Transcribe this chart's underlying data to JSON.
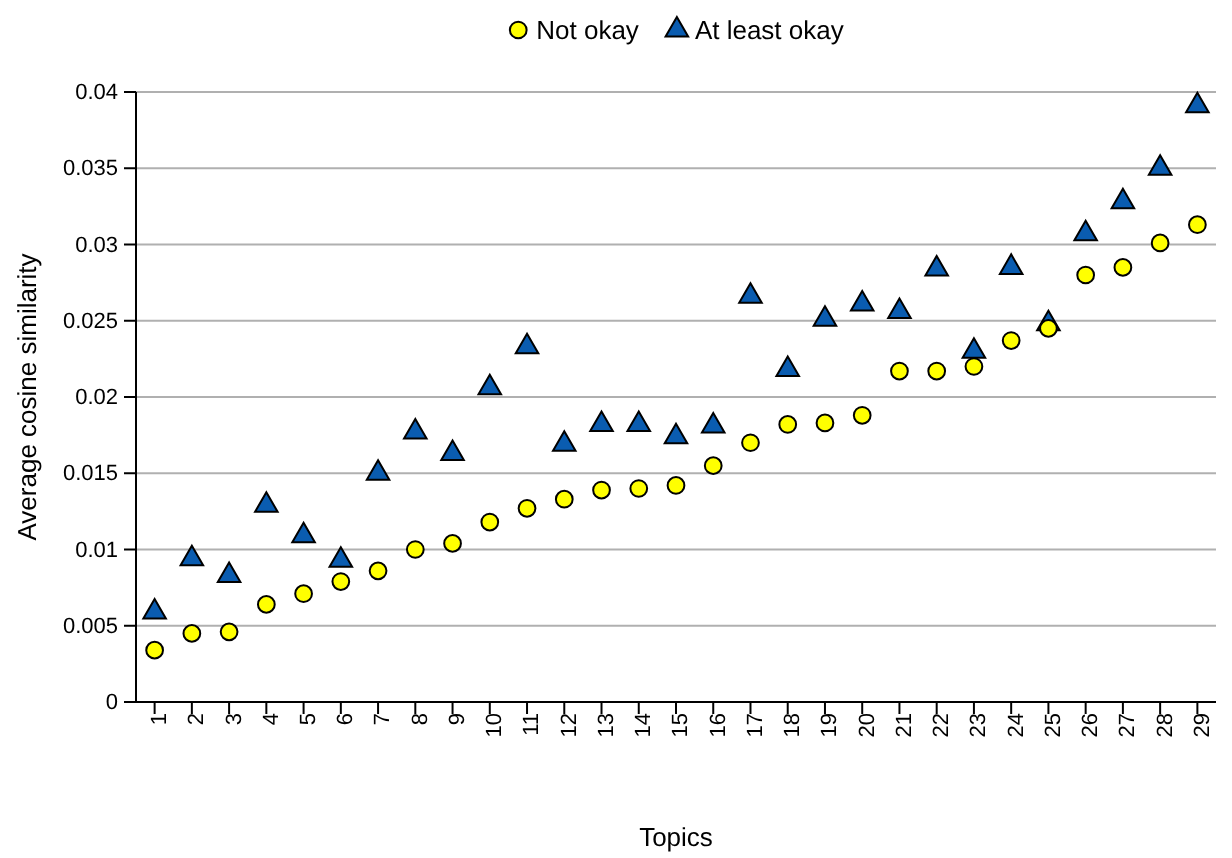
{
  "chart_data": {
    "type": "scatter",
    "xlabel": "Topics",
    "ylabel": "Average cosine similarity",
    "categories": [
      "1",
      "2",
      "3",
      "4",
      "5",
      "6",
      "7",
      "8",
      "9",
      "10",
      "11",
      "12",
      "13",
      "14",
      "15",
      "16",
      "17",
      "18",
      "19",
      "20",
      "21",
      "22",
      "23",
      "24",
      "25",
      "26",
      "27",
      "28",
      "29"
    ],
    "series": [
      {
        "name": "Not okay",
        "color": "#ffff00",
        "marker": "circle",
        "values": [
          0.0034,
          0.0045,
          0.0046,
          0.0064,
          0.0071,
          0.0079,
          0.0086,
          0.01,
          0.0104,
          0.0118,
          0.0127,
          0.0133,
          0.0139,
          0.014,
          0.0142,
          0.0155,
          0.017,
          0.0182,
          0.0183,
          0.0188,
          0.0217,
          0.0217,
          0.022,
          0.0237,
          0.0245,
          0.028,
          0.0285,
          0.0301,
          0.0313
        ]
      },
      {
        "name": "At least okay",
        "color": "#0a5cb0",
        "marker": "triangle",
        "values": [
          0.0059,
          0.0094,
          0.0083,
          0.0129,
          0.0109,
          0.0093,
          0.015,
          0.0177,
          0.0163,
          0.0206,
          0.0233,
          0.0169,
          0.0182,
          0.0182,
          0.0174,
          0.0181,
          0.0266,
          0.0218,
          0.0251,
          0.0261,
          0.0256,
          0.0284,
          0.023,
          0.0285,
          0.0248,
          0.0307,
          0.0328,
          0.035,
          0.0391
        ]
      }
    ],
    "ylim": [
      0,
      0.04
    ],
    "yticks": [
      0,
      0.005,
      0.01,
      0.015,
      0.02,
      0.025,
      0.03,
      0.035,
      0.04
    ],
    "grid": "y",
    "legend": "top"
  }
}
